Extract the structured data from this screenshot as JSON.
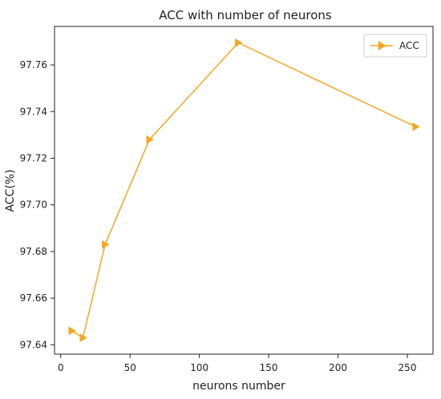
{
  "chart_data": {
    "type": "line",
    "title": "ACC with number of neurons",
    "xlabel": "neurons number",
    "ylabel": "ACC(%)",
    "xlim": [
      -4.5,
      268.5
    ],
    "ylim": [
      97.636,
      97.7765
    ],
    "xticks": [
      0,
      50,
      100,
      150,
      200,
      250
    ],
    "xtick_labels": [
      "0",
      "50",
      "100",
      "150",
      "200",
      "250"
    ],
    "yticks": [
      97.64,
      97.66,
      97.68,
      97.7,
      97.72,
      97.74,
      97.76
    ],
    "ytick_labels": [
      "97.64",
      "97.66",
      "97.68",
      "97.70",
      "97.72",
      "97.74",
      "97.76"
    ],
    "grid": false,
    "legend": "upper-right",
    "series": [
      {
        "name": "ACC",
        "color": "#f5a623",
        "marker": "triangle-right",
        "x": [
          8,
          16,
          32,
          64,
          128,
          256
        ],
        "y": [
          97.646,
          97.643,
          97.683,
          97.728,
          97.7695,
          97.7335
        ]
      }
    ]
  }
}
